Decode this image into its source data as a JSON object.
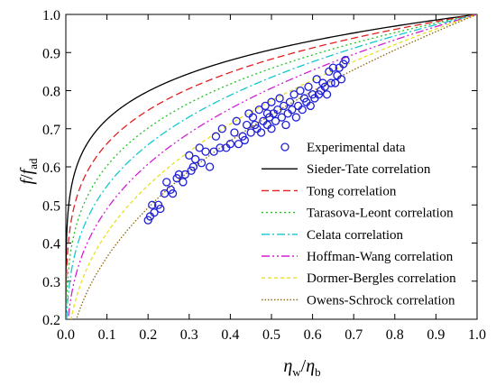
{
  "chart_data": {
    "type": "line",
    "title": "",
    "xlabel": {
      "main": "η",
      "sub": "w",
      "sep": "/",
      "main2": "η",
      "sub2": "b"
    },
    "ylabel": {
      "main": "f",
      "sep": "/",
      "main2": "f",
      "sub2": "ad"
    },
    "xlim": [
      0.0,
      1.0
    ],
    "ylim": [
      0.2,
      1.0
    ],
    "x_ticks": [
      0.0,
      0.1,
      0.2,
      0.3,
      0.4,
      0.5,
      0.6,
      0.7,
      0.8,
      0.9,
      1.0
    ],
    "x_tick_labels": [
      "0.0",
      "0.1",
      "0.2",
      "0.3",
      "0.4",
      "0.5",
      "0.6",
      "0.7",
      "0.8",
      "0.9",
      "1.0"
    ],
    "y_ticks": [
      0.2,
      0.3,
      0.4,
      0.5,
      0.6,
      0.7,
      0.8,
      0.9,
      1.0
    ],
    "y_tick_labels": [
      "0.2",
      "0.3",
      "0.4",
      "0.5",
      "0.6",
      "0.7",
      "0.8",
      "0.9",
      "1.0"
    ],
    "grid": false,
    "legend_position": "bottom-right",
    "series": [
      {
        "name": "Experimental data",
        "kind": "scatter",
        "color": "#1f1fd6",
        "marker": "open-circle",
        "points": [
          [
            0.2,
            0.46
          ],
          [
            0.205,
            0.47
          ],
          [
            0.21,
            0.5
          ],
          [
            0.215,
            0.48
          ],
          [
            0.225,
            0.5
          ],
          [
            0.23,
            0.49
          ],
          [
            0.24,
            0.53
          ],
          [
            0.245,
            0.56
          ],
          [
            0.255,
            0.54
          ],
          [
            0.26,
            0.53
          ],
          [
            0.27,
            0.57
          ],
          [
            0.275,
            0.58
          ],
          [
            0.285,
            0.56
          ],
          [
            0.29,
            0.58
          ],
          [
            0.3,
            0.63
          ],
          [
            0.305,
            0.59
          ],
          [
            0.31,
            0.6
          ],
          [
            0.315,
            0.62
          ],
          [
            0.325,
            0.65
          ],
          [
            0.33,
            0.61
          ],
          [
            0.34,
            0.64
          ],
          [
            0.35,
            0.6
          ],
          [
            0.36,
            0.64
          ],
          [
            0.365,
            0.68
          ],
          [
            0.375,
            0.65
          ],
          [
            0.38,
            0.7
          ],
          [
            0.39,
            0.65
          ],
          [
            0.4,
            0.66
          ],
          [
            0.41,
            0.69
          ],
          [
            0.415,
            0.72
          ],
          [
            0.42,
            0.66
          ],
          [
            0.43,
            0.68
          ],
          [
            0.435,
            0.67
          ],
          [
            0.44,
            0.71
          ],
          [
            0.445,
            0.74
          ],
          [
            0.45,
            0.69
          ],
          [
            0.455,
            0.73
          ],
          [
            0.46,
            0.71
          ],
          [
            0.465,
            0.7
          ],
          [
            0.47,
            0.75
          ],
          [
            0.475,
            0.69
          ],
          [
            0.48,
            0.72
          ],
          [
            0.485,
            0.76
          ],
          [
            0.49,
            0.71
          ],
          [
            0.49,
            0.74
          ],
          [
            0.495,
            0.73
          ],
          [
            0.5,
            0.7
          ],
          [
            0.5,
            0.77
          ],
          [
            0.505,
            0.74
          ],
          [
            0.51,
            0.72
          ],
          [
            0.515,
            0.75
          ],
          [
            0.52,
            0.78
          ],
          [
            0.525,
            0.73
          ],
          [
            0.53,
            0.76
          ],
          [
            0.535,
            0.71
          ],
          [
            0.54,
            0.74
          ],
          [
            0.545,
            0.77
          ],
          [
            0.55,
            0.75
          ],
          [
            0.555,
            0.79
          ],
          [
            0.56,
            0.73
          ],
          [
            0.565,
            0.76
          ],
          [
            0.57,
            0.8
          ],
          [
            0.575,
            0.75
          ],
          [
            0.58,
            0.78
          ],
          [
            0.585,
            0.77
          ],
          [
            0.59,
            0.81
          ],
          [
            0.595,
            0.76
          ],
          [
            0.6,
            0.79
          ],
          [
            0.605,
            0.78
          ],
          [
            0.61,
            0.83
          ],
          [
            0.615,
            0.79
          ],
          [
            0.62,
            0.8
          ],
          [
            0.625,
            0.82
          ],
          [
            0.63,
            0.81
          ],
          [
            0.635,
            0.79
          ],
          [
            0.64,
            0.85
          ],
          [
            0.645,
            0.82
          ],
          [
            0.65,
            0.86
          ],
          [
            0.655,
            0.82
          ],
          [
            0.66,
            0.84
          ],
          [
            0.665,
            0.86
          ],
          [
            0.67,
            0.83
          ],
          [
            0.675,
            0.87
          ],
          [
            0.68,
            0.88
          ]
        ]
      },
      {
        "name": "Sieder-Tate correlation",
        "kind": "line",
        "color": "#000000",
        "dash": "solid",
        "exponent": 0.14
      },
      {
        "name": "Tong correlation",
        "kind": "line",
        "color": "#e21f1f",
        "dash": "dash",
        "exponent": 0.18
      },
      {
        "name": "Tarasova-Leont correlation",
        "kind": "line",
        "color": "#21c421",
        "dash": "dot",
        "exponent": 0.22
      },
      {
        "name": "Celata correlation",
        "kind": "line",
        "color": "#14c8d2",
        "dash": "dashdot",
        "exponent": 0.26
      },
      {
        "name": "Hoffman-Wang correlation",
        "kind": "line",
        "color": "#d21fd2",
        "dash": "dashdotdot",
        "exponent": 0.31
      },
      {
        "name": "Dormer-Bergles correlation",
        "kind": "line",
        "color": "#e8e020",
        "dash": "shortdash",
        "exponent": 0.37
      },
      {
        "name": "Owens-Schrock correlation",
        "kind": "line",
        "color": "#8b6508",
        "dash": "shortdot",
        "exponent": 0.44
      }
    ]
  }
}
